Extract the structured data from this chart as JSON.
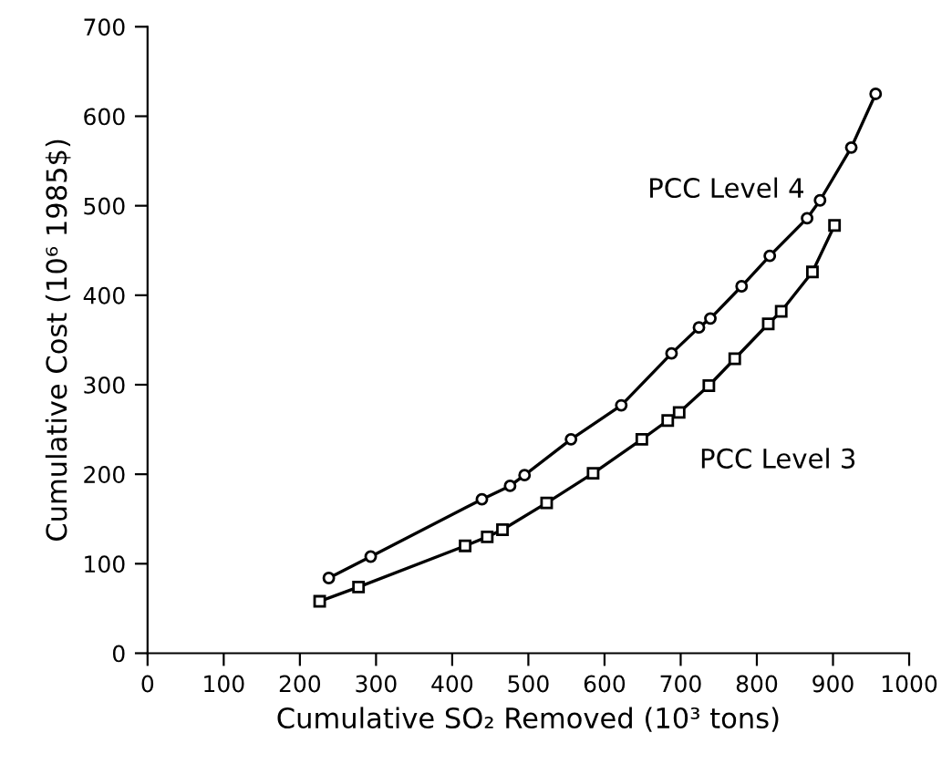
{
  "chart_data": {
    "type": "line",
    "xlabel": "Cumulative SO₂ Removed (10³ tons)",
    "ylabel": "Cumulative Cost (10⁶ 1985$)",
    "xlim": [
      0,
      1000
    ],
    "ylim": [
      0,
      700
    ],
    "xticks": [
      0,
      100,
      200,
      300,
      400,
      500,
      600,
      700,
      800,
      900,
      1000
    ],
    "yticks": [
      0,
      100,
      200,
      300,
      400,
      500,
      600,
      700
    ],
    "grid": false,
    "legend": false,
    "line_style": "solid",
    "series": [
      {
        "name": "PCC Level 4",
        "color": "#000000",
        "marker": "circle",
        "x": [
          238,
          293,
          439,
          476,
          495,
          556,
          622,
          688,
          724,
          739,
          780,
          817,
          866,
          883,
          924,
          956
        ],
        "values": [
          84,
          108,
          172,
          187,
          199,
          239,
          277,
          335,
          364,
          374,
          410,
          444,
          486,
          506,
          565,
          625
        ]
      },
      {
        "name": "PCC Level 3",
        "color": "#000000",
        "marker": "square",
        "x": [
          226,
          277,
          417,
          446,
          466,
          524,
          585,
          649,
          683,
          698,
          737,
          771,
          815,
          832,
          873,
          902
        ],
        "values": [
          58,
          74,
          120,
          130,
          138,
          168,
          201,
          239,
          260,
          269,
          299,
          329,
          368,
          382,
          426,
          478
        ]
      }
    ]
  }
}
